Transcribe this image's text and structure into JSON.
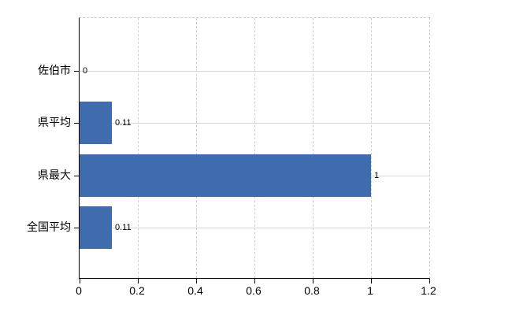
{
  "chart_data": {
    "type": "bar",
    "orientation": "horizontal",
    "title": "",
    "xlabel": "",
    "ylabel": "",
    "categories": [
      "佐伯市",
      "県平均",
      "県最大",
      "全国平均"
    ],
    "values": [
      0,
      0.11,
      1,
      0.11
    ],
    "value_labels": [
      "0",
      "0.11",
      "1",
      "0.11"
    ],
    "x_ticks": [
      0,
      0.2,
      0.4,
      0.6,
      0.8,
      1,
      1.2
    ],
    "x_tick_labels": [
      "0",
      "0.2",
      "0.4",
      "0.6",
      "0.8",
      "1",
      "1.2"
    ],
    "xlim": [
      0,
      1.2
    ],
    "grid": true,
    "legend": false
  },
  "colors": {
    "bar": "#3F6CAC",
    "h_gridline": "#d5d9d2",
    "v_gridline": "#cbd0d6",
    "axis": "#000000",
    "dashed_border": "#c9c9c9",
    "text": "#000000",
    "background": "#ffffff"
  }
}
